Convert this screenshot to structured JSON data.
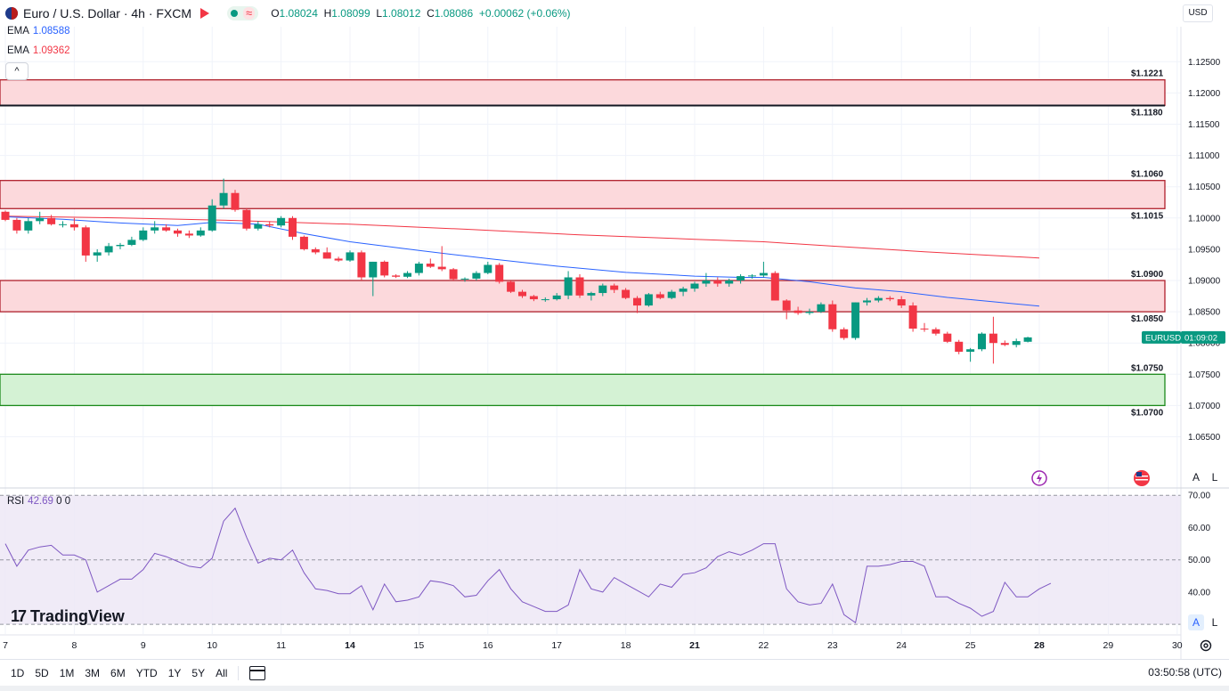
{
  "header": {
    "symbol_title": "Euro / U.S. Dollar · 4h · FXCM",
    "ohlc": {
      "o_key": "O",
      "o_val": "1.08024",
      "h_key": "H",
      "h_val": "1.08099",
      "l_key": "L",
      "l_val": "1.08012",
      "c_key": "C",
      "c_val": "1.08086",
      "change": "+0.00062 (+0.06%)"
    },
    "currency_button": "USD"
  },
  "legend": {
    "ema1_label": "EMA",
    "ema1_value": "1.08588",
    "ema2_label": "EMA",
    "ema2_value": "1.09362",
    "collapse_icon": "^"
  },
  "rsi": {
    "label": "RSI",
    "value": "42.69",
    "p1": "0",
    "p2": "0"
  },
  "branding": {
    "name": "TradingView",
    "mark": "17"
  },
  "buttons": {
    "auto": "A",
    "log": "L",
    "auto2": "A",
    "log2": "L"
  },
  "timeframes": [
    "1D",
    "5D",
    "1M",
    "3M",
    "6M",
    "YTD",
    "1Y",
    "5Y",
    "All"
  ],
  "clock": "03:50:58 (UTC)",
  "colors": {
    "up": "#089981",
    "down": "#f23645",
    "ema_fast": "#2962ff",
    "ema_slow": "#f23645",
    "rsi": "#7e57c2"
  },
  "chart_data": {
    "type": "candlestick",
    "title": "Euro / U.S. Dollar · 4h · FXCM",
    "symbol_label": "EURUSD",
    "countdown": "01:09:02",
    "price_axis": {
      "ylim": [
        1.0598,
        1.1306
      ],
      "ticks": [
        "1.12500",
        "1.12000",
        "1.11500",
        "1.11000",
        "1.10500",
        "1.10000",
        "1.09500",
        "1.09000",
        "1.08500",
        "1.08000",
        "1.07500",
        "1.07000",
        "1.06500"
      ],
      "tick_values": [
        1.125,
        1.12,
        1.115,
        1.11,
        1.105,
        1.1,
        1.095,
        1.09,
        1.085,
        1.08,
        1.075,
        1.07,
        1.065
      ]
    },
    "rsi_axis": {
      "ylim": [
        27,
        72
      ],
      "ticks": [
        "70.00",
        "60.00",
        "50.00",
        "40.00"
      ],
      "tick_values": [
        70,
        60,
        50,
        40
      ]
    },
    "x_labels": [
      {
        "text": "7",
        "i": 0
      },
      {
        "text": "8",
        "i": 6
      },
      {
        "text": "9",
        "i": 12
      },
      {
        "text": "10",
        "i": 18
      },
      {
        "text": "11",
        "i": 24
      },
      {
        "text": "14",
        "i": 30
      },
      {
        "text": "15",
        "i": 36
      },
      {
        "text": "16",
        "i": 42
      },
      {
        "text": "17",
        "i": 48
      },
      {
        "text": "18",
        "i": 54
      },
      {
        "text": "21",
        "i": 60
      },
      {
        "text": "22",
        "i": 66
      },
      {
        "text": "23",
        "i": 72
      },
      {
        "text": "24",
        "i": 78
      },
      {
        "text": "25",
        "i": 84
      },
      {
        "text": "28",
        "i": 90
      },
      {
        "text": "29",
        "i": 96
      },
      {
        "text": "30",
        "i": 102
      }
    ],
    "zones": [
      {
        "top": 1.1221,
        "bottom": 1.118,
        "kind": "resistance",
        "top_label": "$1.1221",
        "bottom_label": "$1.1180"
      },
      {
        "top": 1.106,
        "bottom": 1.1015,
        "kind": "resistance",
        "top_label": "$1.1060",
        "bottom_label": "$1.1015"
      },
      {
        "top": 1.09,
        "bottom": 1.085,
        "kind": "resistance",
        "top_label": "$1.0900",
        "bottom_label": "$1.0850"
      },
      {
        "top": 1.075,
        "bottom": 1.07,
        "kind": "support",
        "top_label": "$1.0750",
        "bottom_label": "$1.0700"
      }
    ],
    "candles": [
      [
        1.101,
        1.1012,
        1.0995,
        1.0997
      ],
      [
        1.0997,
        1.1,
        1.0975,
        1.098
      ],
      [
        1.098,
        1.1,
        1.0975,
        1.0995
      ],
      [
        1.0995,
        1.101,
        1.099,
        1.1
      ],
      [
        1.1,
        1.1005,
        1.0988,
        1.099
      ],
      [
        1.099,
        1.0995,
        1.0985,
        1.099
      ],
      [
        1.099,
        1.1,
        1.098,
        1.0985
      ],
      [
        1.0985,
        1.0988,
        1.093,
        1.094
      ],
      [
        1.094,
        1.095,
        1.093,
        1.0945
      ],
      [
        1.0945,
        1.096,
        1.094,
        1.0955
      ],
      [
        1.0955,
        1.096,
        1.095,
        1.0957
      ],
      [
        1.0957,
        1.097,
        1.0955,
        1.0965
      ],
      [
        1.0965,
        1.0985,
        1.0963,
        1.098
      ],
      [
        1.098,
        1.0995,
        1.0975,
        1.0985
      ],
      [
        1.0985,
        1.099,
        1.0978,
        1.098
      ],
      [
        1.098,
        1.0983,
        1.097,
        1.0975
      ],
      [
        1.0975,
        1.098,
        1.0968,
        1.0972
      ],
      [
        1.0972,
        1.0985,
        1.097,
        1.098
      ],
      [
        1.098,
        1.103,
        1.0978,
        1.102
      ],
      [
        1.102,
        1.1063,
        1.1015,
        1.104
      ],
      [
        1.104,
        1.1045,
        1.101,
        1.1013
      ],
      [
        1.1013,
        1.1015,
        1.098,
        1.0983
      ],
      [
        1.0983,
        1.0995,
        1.098,
        1.099
      ],
      [
        1.099,
        1.0995,
        1.0985,
        1.0988
      ],
      [
        1.0988,
        1.1003,
        1.0985,
        1.1
      ],
      [
        1.1,
        1.1003,
        1.0965,
        1.097
      ],
      [
        1.097,
        1.0972,
        1.0948,
        1.095
      ],
      [
        1.095,
        1.0953,
        1.0942,
        1.0945
      ],
      [
        1.0945,
        1.0953,
        1.0935,
        1.0935
      ],
      [
        1.0935,
        1.0938,
        1.093,
        1.0932
      ],
      [
        1.0932,
        1.0948,
        1.093,
        1.0945
      ],
      [
        1.0945,
        1.0948,
        1.09,
        1.0905
      ],
      [
        1.0905,
        1.093,
        1.0875,
        1.093
      ],
      [
        1.093,
        1.0932,
        1.0905,
        1.0908
      ],
      [
        1.0908,
        1.091,
        1.0904,
        1.0906
      ],
      [
        1.0906,
        1.0915,
        1.0904,
        1.0912
      ],
      [
        1.0912,
        1.093,
        1.0908,
        1.0927
      ],
      [
        1.0927,
        1.0935,
        1.092,
        1.0922
      ],
      [
        1.0922,
        1.0955,
        1.0915,
        1.0918
      ],
      [
        1.0918,
        1.092,
        1.09,
        1.0902
      ],
      [
        1.0902,
        1.0905,
        1.0898,
        1.0903
      ],
      [
        1.0903,
        1.0915,
        1.09,
        1.0912
      ],
      [
        1.0912,
        1.093,
        1.091,
        1.0925
      ],
      [
        1.0925,
        1.0928,
        1.0895,
        1.0898
      ],
      [
        1.0898,
        1.09,
        1.088,
        1.0882
      ],
      [
        1.0882,
        1.0885,
        1.0872,
        1.0875
      ],
      [
        1.0875,
        1.0877,
        1.0867,
        1.087
      ],
      [
        1.087,
        1.0873,
        1.0866,
        1.087
      ],
      [
        1.087,
        1.088,
        1.0868,
        1.0876
      ],
      [
        1.0876,
        1.0915,
        1.087,
        1.0905
      ],
      [
        1.0905,
        1.091,
        1.0872,
        1.0876
      ],
      [
        1.0876,
        1.0882,
        1.0868,
        1.088
      ],
      [
        1.088,
        1.0895,
        1.0875,
        1.0892
      ],
      [
        1.0892,
        1.0895,
        1.088,
        1.0885
      ],
      [
        1.0885,
        1.0888,
        1.087,
        1.0872
      ],
      [
        1.0872,
        1.0875,
        1.0848,
        1.086
      ],
      [
        1.086,
        1.088,
        1.0858,
        1.0878
      ],
      [
        1.0878,
        1.0882,
        1.087,
        1.0872
      ],
      [
        1.0872,
        1.0885,
        1.087,
        1.0882
      ],
      [
        1.0882,
        1.089,
        1.0875,
        1.0887
      ],
      [
        1.0887,
        1.0898,
        1.0882,
        1.0895
      ],
      [
        1.0895,
        1.0912,
        1.089,
        1.09
      ],
      [
        1.09,
        1.0905,
        1.089,
        1.0895
      ],
      [
        1.0895,
        1.0903,
        1.089,
        1.09
      ],
      [
        1.09,
        1.091,
        1.0895,
        1.0907
      ],
      [
        1.0907,
        1.091,
        1.0903,
        1.0908
      ],
      [
        1.0908,
        1.093,
        1.0905,
        1.0912
      ],
      [
        1.0912,
        1.0915,
        1.0868,
        1.0868
      ],
      [
        1.0868,
        1.087,
        1.0838,
        1.0852
      ],
      [
        1.0852,
        1.0858,
        1.0845,
        1.0848
      ],
      [
        1.0848,
        1.0855,
        1.0845,
        1.085
      ],
      [
        1.085,
        1.0865,
        1.0848,
        1.0862
      ],
      [
        1.0862,
        1.0868,
        1.0818,
        1.0822
      ],
      [
        1.0822,
        1.0825,
        1.0805,
        1.0808
      ],
      [
        1.0808,
        1.0865,
        1.0805,
        1.0865
      ],
      [
        1.0865,
        1.0872,
        1.086,
        1.0868
      ],
      [
        1.0868,
        1.0875,
        1.0865,
        1.0872
      ],
      [
        1.0872,
        1.0875,
        1.0867,
        1.087
      ],
      [
        1.087,
        1.0875,
        1.0856,
        1.086
      ],
      [
        1.086,
        1.0865,
        1.0818,
        1.0823
      ],
      [
        1.0823,
        1.0832,
        1.0818,
        1.0822
      ],
      [
        1.0822,
        1.0825,
        1.0812,
        1.0815
      ],
      [
        1.0815,
        1.0818,
        1.08,
        1.0802
      ],
      [
        1.0802,
        1.0805,
        1.0782,
        1.0786
      ],
      [
        1.0786,
        1.0792,
        1.077,
        1.079
      ],
      [
        1.079,
        1.0817,
        1.0787,
        1.0815
      ],
      [
        1.0815,
        1.0842,
        1.0767,
        1.08
      ],
      [
        1.08,
        1.0804,
        1.0795,
        1.0797
      ],
      [
        1.0797,
        1.0807,
        1.0793,
        1.0803
      ],
      [
        1.0802,
        1.081,
        1.0801,
        1.0809
      ]
    ],
    "ema_fast": [
      [
        0,
        1.1002
      ],
      [
        5,
        1.0998
      ],
      [
        10,
        1.0992
      ],
      [
        15,
        1.0988
      ],
      [
        18,
        1.0993
      ],
      [
        22,
        1.099
      ],
      [
        26,
        1.0975
      ],
      [
        30,
        1.0962
      ],
      [
        36,
        1.0948
      ],
      [
        42,
        1.0935
      ],
      [
        48,
        1.0923
      ],
      [
        54,
        1.0913
      ],
      [
        60,
        1.0907
      ],
      [
        64,
        1.0905
      ],
      [
        66,
        1.0905
      ],
      [
        70,
        1.0898
      ],
      [
        74,
        1.0888
      ],
      [
        78,
        1.0882
      ],
      [
        82,
        1.0873
      ],
      [
        86,
        1.0866
      ],
      [
        90,
        1.0859
      ]
    ],
    "ema_slow": [
      [
        0,
        1.1003
      ],
      [
        10,
        1.1
      ],
      [
        20,
        1.0996
      ],
      [
        30,
        1.099
      ],
      [
        40,
        1.0982
      ],
      [
        50,
        1.0973
      ],
      [
        60,
        1.0966
      ],
      [
        66,
        1.0962
      ],
      [
        72,
        1.0955
      ],
      [
        80,
        1.0946
      ],
      [
        90,
        1.0936
      ]
    ],
    "rsi_series": [
      55,
      48,
      53,
      54,
      54.5,
      51.5,
      51.5,
      50,
      40,
      42,
      44,
      44,
      47,
      52,
      51,
      49.5,
      48,
      47.5,
      50.5,
      62,
      66,
      57,
      49,
      50.5,
      50,
      53,
      46,
      41,
      40.5,
      39.5,
      39.5,
      42,
      34.5,
      42.5,
      37,
      37.5,
      38.5,
      43.5,
      43,
      42,
      38.5,
      39,
      43.5,
      47,
      41,
      37,
      35.5,
      34,
      34,
      36,
      47,
      41,
      40,
      44.5,
      42.5,
      40.5,
      38.5,
      42.5,
      41.5,
      45.5,
      46,
      47.5,
      51,
      52.5,
      51.5,
      53,
      55,
      55,
      41,
      37,
      36,
      36.5,
      42.5,
      33,
      30.5,
      48,
      48,
      48.5,
      49.5,
      49.5,
      48,
      38.5,
      38.5,
      36.5,
      35,
      32.5,
      34,
      43,
      38.5,
      38.5,
      41,
      42.7
    ]
  }
}
